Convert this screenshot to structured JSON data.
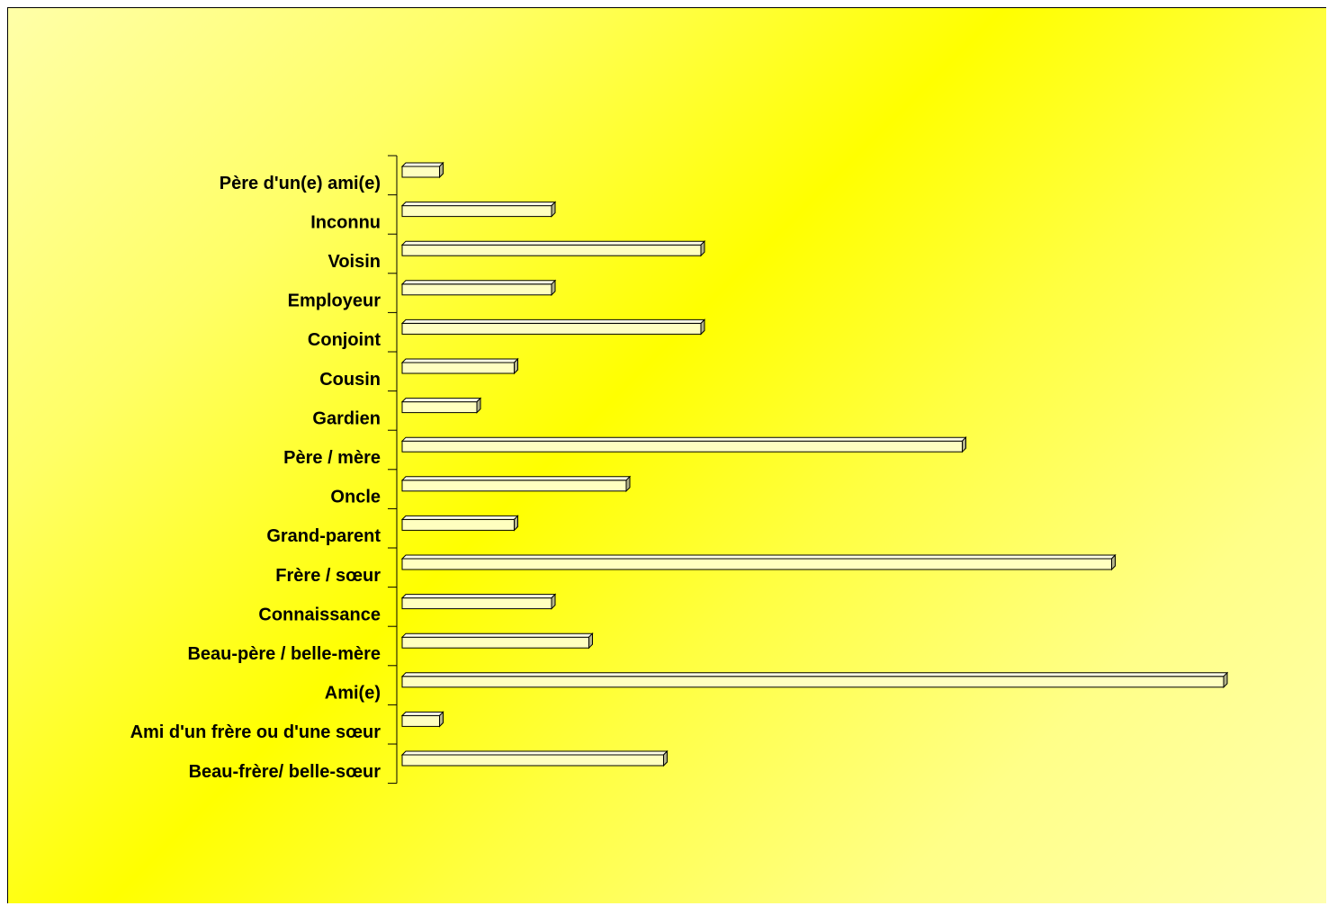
{
  "chart_data": {
    "type": "bar",
    "orientation": "horizontal",
    "style": "3d",
    "title": "",
    "xlabel": "",
    "ylabel": "",
    "xlim": [
      0,
      22
    ],
    "grid": false,
    "legend": "none",
    "categories": [
      "Beau-frère/ belle-sœur",
      "Ami d'un frère ou d'une sœur",
      "Ami(e)",
      "Beau-père / belle-mère",
      "Connaissance",
      "Frère / sœur",
      "Grand-parent",
      "Oncle",
      "Père / mère",
      "Gardien",
      "Cousin",
      "Conjoint",
      "Employeur",
      "Voisin",
      "Inconnu",
      "Père d'un(e) ami(e)"
    ],
    "values": [
      7,
      1,
      22,
      5,
      4,
      19,
      3,
      6,
      15,
      2,
      3,
      8,
      4,
      8,
      4,
      1
    ]
  },
  "colors": {
    "bar_front": "#ffffc0",
    "bar_top": "#ffffe6",
    "bar_side": "#b3b38a",
    "bar_outline": "#000000",
    "background_gradient": [
      "#ffffa8",
      "#ffff00",
      "#ffffb0"
    ]
  }
}
